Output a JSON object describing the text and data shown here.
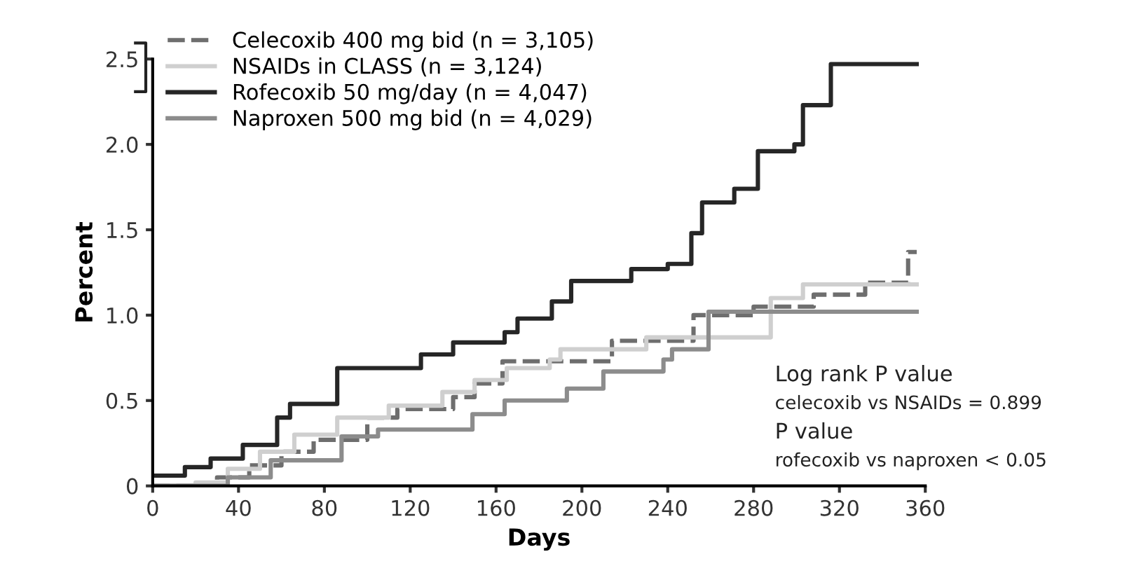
{
  "chart_data": {
    "type": "step",
    "xlabel": "Days",
    "ylabel": "Percent",
    "xlim": [
      0,
      360
    ],
    "xticks": [
      0,
      40,
      80,
      120,
      160,
      200,
      240,
      280,
      320,
      360
    ],
    "ylim": [
      0,
      2.5
    ],
    "yticks": [
      0,
      0.5,
      {
        "value": 1,
        "label": "1.0"
      },
      1.5,
      {
        "value": 2,
        "label": "2.0"
      },
      2.5
    ],
    "legend": "top left",
    "marker": "none",
    "grid": false,
    "series": [
      {
        "name": "Celecoxib 400 mg bid (n = 3,105)",
        "color": "#6e6e6e",
        "line_style": "dashed",
        "x": [
          0,
          30,
          45,
          60,
          75,
          100,
          114,
          140,
          150,
          163,
          214,
          252,
          280,
          308,
          332,
          352,
          356
        ],
        "values": [
          0,
          0.05,
          0.12,
          0.2,
          0.27,
          0.4,
          0.45,
          0.52,
          0.6,
          0.73,
          0.85,
          1.0,
          1.05,
          1.12,
          1.19,
          1.37,
          1.37
        ]
      },
      {
        "name": "NSAIDs in CLASS (n = 3,124)",
        "color": "#cfcfcf",
        "line_style": "solid",
        "x": [
          0,
          20,
          35,
          50,
          66,
          86,
          110,
          135,
          150,
          165,
          185,
          190,
          230,
          288,
          303,
          356
        ],
        "values": [
          0,
          0.02,
          0.1,
          0.2,
          0.3,
          0.4,
          0.47,
          0.55,
          0.62,
          0.69,
          0.74,
          0.8,
          0.87,
          1.1,
          1.18,
          1.18
        ]
      },
      {
        "name": "Rofecoxib 50 mg/day (n = 4,047)",
        "color": "#262626",
        "line_style": "solid",
        "x": [
          0,
          15,
          27,
          42,
          58,
          64,
          86,
          125,
          140,
          164,
          170,
          186,
          195,
          223,
          240,
          251,
          256,
          271,
          282,
          299,
          303,
          316,
          356
        ],
        "values": [
          0.06,
          0.11,
          0.16,
          0.24,
          0.4,
          0.48,
          0.69,
          0.77,
          0.84,
          0.9,
          0.98,
          1.08,
          1.2,
          1.27,
          1.3,
          1.48,
          1.66,
          1.74,
          1.96,
          2.0,
          2.23,
          2.47,
          2.47
        ]
      },
      {
        "name": "Naproxen 500 mg bid (n = 4,029)",
        "color": "#8c8c8c",
        "line_style": "solid",
        "x": [
          0,
          35,
          55,
          88,
          105,
          149,
          164,
          193,
          210,
          238,
          242,
          259,
          356
        ],
        "values": [
          0,
          0.05,
          0.15,
          0.29,
          0.33,
          0.42,
          0.5,
          0.57,
          0.67,
          0.74,
          0.8,
          1.02,
          1.02
        ]
      }
    ],
    "annotations": [
      "Log rank P value",
      "celecoxib vs NSAIDs = 0.899",
      "P value",
      "rofecoxib vs naproxen < 0.05"
    ]
  }
}
